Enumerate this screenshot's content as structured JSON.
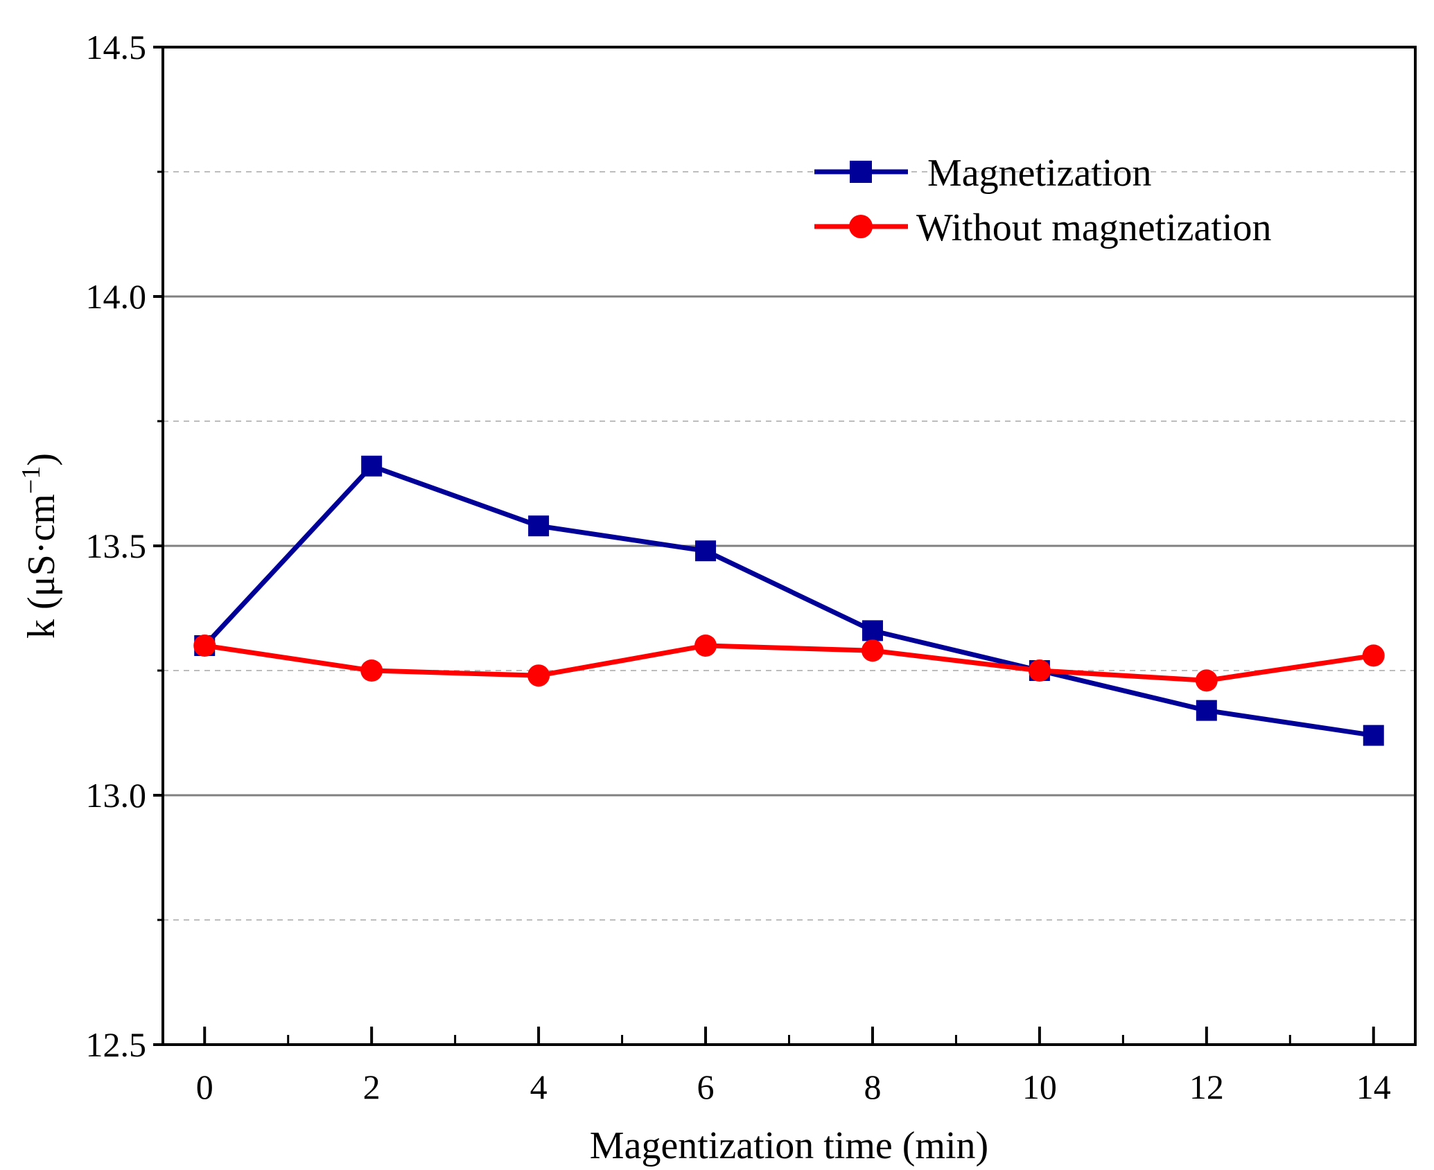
{
  "chart_data": {
    "type": "line",
    "x": [
      0,
      2,
      4,
      6,
      8,
      10,
      12,
      14
    ],
    "xlim": [
      -0.5,
      14.5
    ],
    "ylim": [
      12.5,
      14.5
    ],
    "xticks": [
      0,
      2,
      4,
      6,
      8,
      10,
      12,
      14
    ],
    "xtick_labels": [
      "0",
      "2",
      "4",
      "6",
      "8",
      "10",
      "12",
      "14"
    ],
    "yticks": [
      12.5,
      13.0,
      13.5,
      14.0,
      14.5
    ],
    "ytick_labels": [
      "12.5",
      "13.0",
      "13.5",
      "14.0",
      "14.5"
    ],
    "grid_major_y": [
      13.0,
      13.5,
      14.0
    ],
    "grid_minor_y": [
      12.75,
      13.25,
      13.75,
      14.25
    ],
    "xlabel": "Magentization time (min)",
    "ylabel": {
      "text": "k (μS·cm",
      "superscript": "−1",
      "close": ")"
    },
    "legend_position": "upper-right",
    "series": [
      {
        "name": "Magnetization",
        "color": "#000099",
        "marker": "square",
        "values": [
          13.3,
          13.66,
          13.54,
          13.49,
          13.33,
          13.25,
          13.17,
          13.12
        ]
      },
      {
        "name": "Without magnetization",
        "color": "#ff0000",
        "marker": "circle",
        "values": [
          13.3,
          13.25,
          13.24,
          13.3,
          13.29,
          13.25,
          13.23,
          13.28
        ]
      }
    ]
  }
}
